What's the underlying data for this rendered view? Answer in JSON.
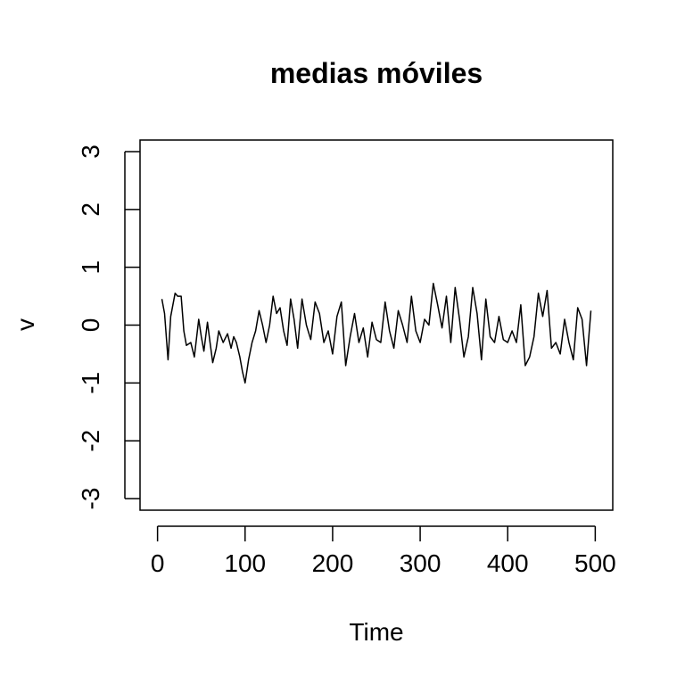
{
  "chart_data": {
    "type": "line",
    "title": "medias móviles",
    "xlabel": "Time",
    "ylabel": "v",
    "xlim": [
      -20,
      520
    ],
    "ylim": [
      -3.2,
      3.2
    ],
    "x_ticks": [
      0,
      100,
      200,
      300,
      400,
      500
    ],
    "y_ticks": [
      -3,
      -2,
      -1,
      0,
      1,
      2,
      3
    ],
    "grid": false,
    "line_color": "#000000",
    "series": [
      {
        "x": [
          5,
          8,
          12,
          15,
          20,
          23,
          27,
          30,
          33,
          38,
          42,
          47,
          50,
          53,
          57,
          60,
          63,
          67,
          70,
          75,
          80,
          84,
          87,
          90,
          94,
          97,
          100,
          104,
          108,
          112,
          116,
          120,
          124,
          128,
          132,
          136,
          140,
          144,
          148,
          152,
          156,
          160,
          165,
          170,
          175,
          180,
          185,
          190,
          195,
          200,
          205,
          210,
          215,
          220,
          225,
          230,
          235,
          240,
          245,
          250,
          255,
          260,
          265,
          270,
          275,
          280,
          285,
          290,
          295,
          300,
          305,
          310,
          315,
          320,
          325,
          330,
          335,
          340,
          345,
          350,
          355,
          360,
          365,
          370,
          375,
          380,
          385,
          390,
          395,
          400,
          405,
          410,
          415,
          420,
          425,
          430,
          435,
          440,
          445,
          450,
          455,
          460,
          465,
          470,
          475,
          480,
          485,
          490,
          495
        ],
        "y": [
          0.45,
          0.2,
          -0.6,
          0.15,
          0.55,
          0.5,
          0.5,
          -0.1,
          -0.35,
          -0.3,
          -0.55,
          0.1,
          -0.2,
          -0.45,
          0.05,
          -0.3,
          -0.65,
          -0.4,
          -0.1,
          -0.3,
          -0.15,
          -0.4,
          -0.2,
          -0.3,
          -0.55,
          -0.8,
          -1.0,
          -0.6,
          -0.3,
          -0.1,
          0.25,
          0.0,
          -0.3,
          0.0,
          0.5,
          0.2,
          0.3,
          -0.1,
          -0.35,
          0.45,
          0.1,
          -0.4,
          0.45,
          0.0,
          -0.25,
          0.4,
          0.2,
          -0.3,
          -0.1,
          -0.5,
          0.15,
          0.4,
          -0.7,
          -0.2,
          0.2,
          -0.3,
          -0.05,
          -0.55,
          0.05,
          -0.25,
          -0.3,
          0.4,
          -0.1,
          -0.4,
          0.25,
          0.0,
          -0.3,
          0.5,
          -0.1,
          -0.3,
          0.1,
          0.0,
          0.72,
          0.35,
          -0.05,
          0.5,
          -0.3,
          0.65,
          0.1,
          -0.55,
          -0.2,
          0.65,
          0.2,
          -0.6,
          0.45,
          -0.2,
          -0.3,
          0.15,
          -0.25,
          -0.3,
          -0.1,
          -0.3,
          0.35,
          -0.7,
          -0.55,
          -0.2,
          0.55,
          0.15,
          0.6,
          -0.4,
          -0.3,
          -0.5,
          0.1,
          -0.3,
          -0.6,
          0.3,
          0.1,
          -0.7,
          0.25
        ]
      }
    ]
  }
}
